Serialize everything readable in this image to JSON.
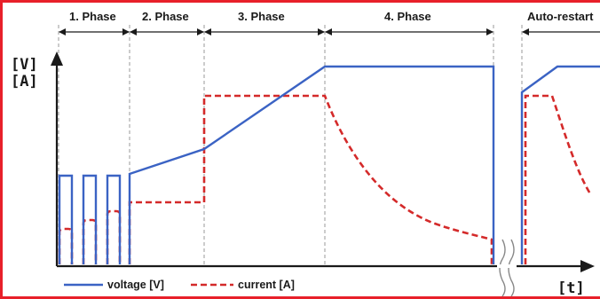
{
  "phases": [
    {
      "label": "1. Phase"
    },
    {
      "label": "2. Phase"
    },
    {
      "label": "3. Phase"
    },
    {
      "label": "4. Phase"
    },
    {
      "label": "Auto-restart"
    }
  ],
  "axes": {
    "y_label_top": "[V]",
    "y_label_bottom": "[A]",
    "x_label": "[t]"
  },
  "legend": {
    "voltage_label": "voltage [V]",
    "current_label": "current [A]"
  },
  "colors": {
    "voltage": "#3b63c4",
    "current": "#d42a2a",
    "frame": "#e8202a",
    "axis": "#1a1a1a",
    "divider": "#999999"
  }
}
